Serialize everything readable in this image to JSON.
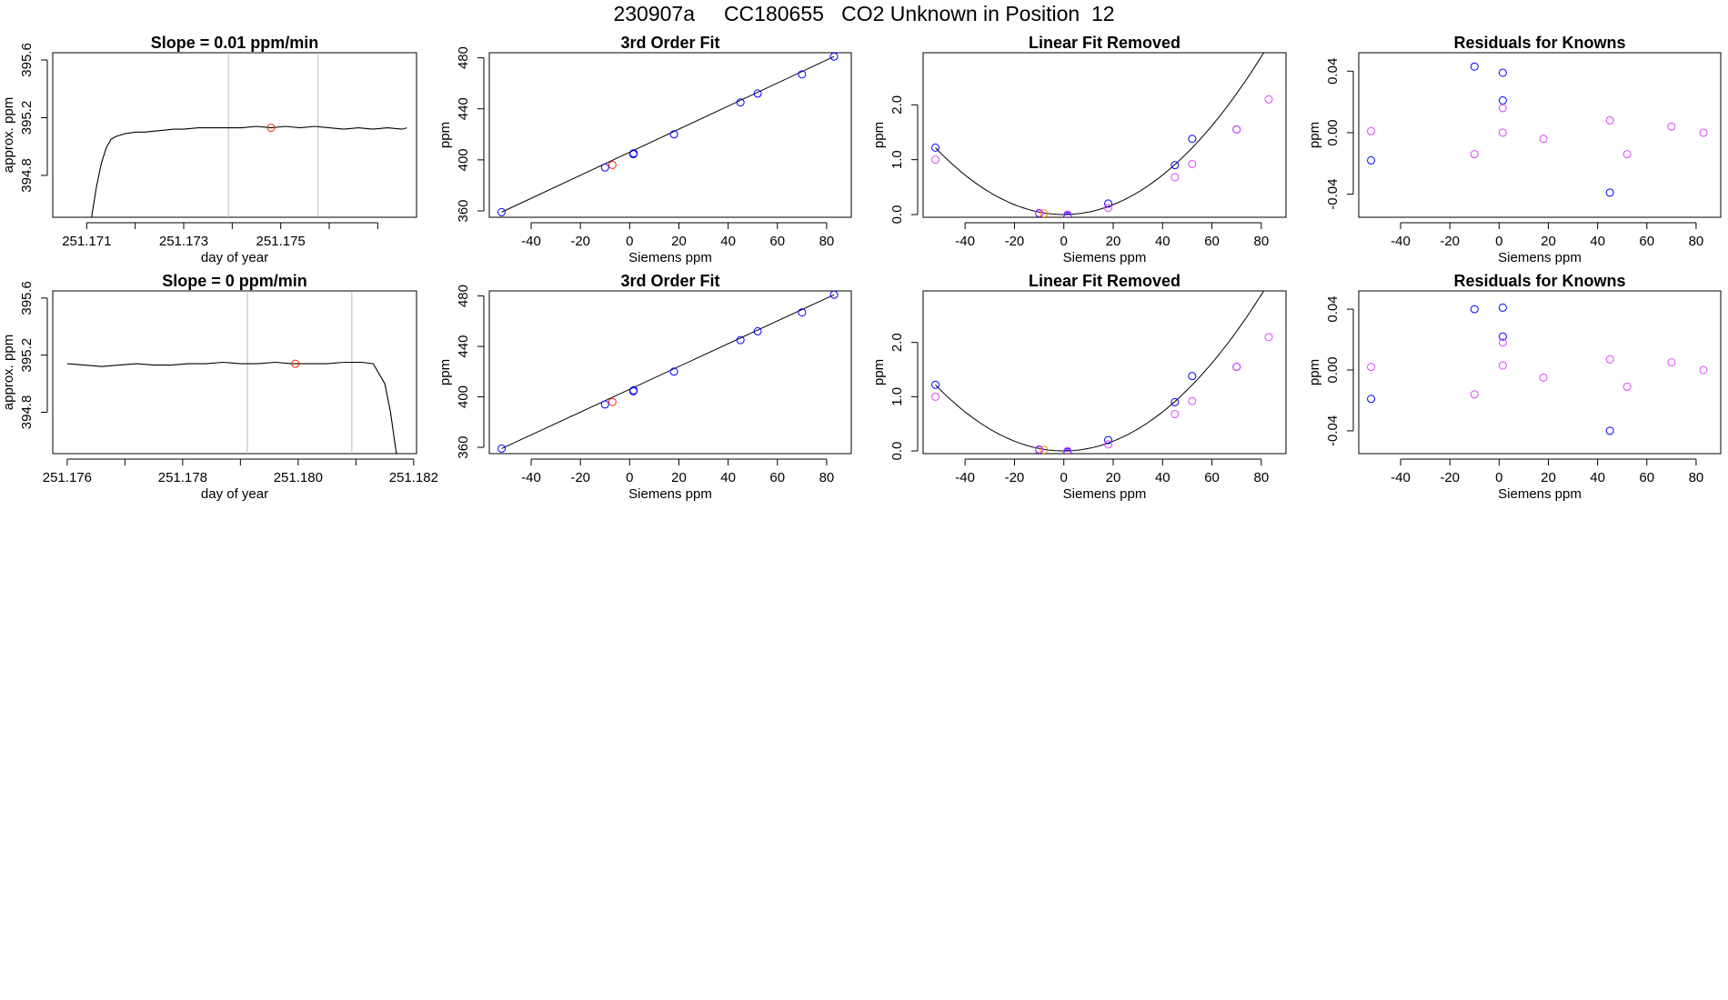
{
  "main_title": "230907a     CC180655   CO2 Unknown in Position  12",
  "colors": {
    "blue": "#0000ff",
    "magenta": "#e040ff",
    "red": "#ff2200",
    "orange": "#ff8800",
    "grid": "#bbbbbb",
    "line": "#000000"
  },
  "chart_data": [
    {
      "type": "line",
      "row": 0,
      "col": 0,
      "title": "Slope =  0.01  ppm/min",
      "xlabel": "day of year",
      "ylabel": "approx. ppm",
      "xlim": [
        251.1703,
        251.1778
      ],
      "ylim": [
        394.51,
        395.65
      ],
      "xticks": [
        251.171,
        251.172,
        251.173,
        251.174,
        251.175,
        251.176,
        251.177
      ],
      "xticklabels": [
        "251.171",
        "",
        "251.173",
        "",
        "251.175",
        "",
        ""
      ],
      "yticks": [
        394.8,
        395.2,
        395.6
      ],
      "yticklabels": [
        "394.8",
        "395.2",
        "395.6"
      ],
      "vlines": [
        251.17392,
        251.17577
      ],
      "series": [
        {
          "name": "trace",
          "x": [
            251.1711,
            251.1712,
            251.1713,
            251.1714,
            251.1715,
            251.1716,
            251.1717,
            251.1718,
            251.172,
            251.1722,
            251.1725,
            251.1728,
            251.173,
            251.1733,
            251.1736,
            251.1739,
            251.1742,
            251.1745,
            251.1748,
            251.1751,
            251.1754,
            251.1757,
            251.176,
            251.1763,
            251.1766,
            251.1769,
            251.1772,
            251.1775,
            251.1776
          ],
          "y": [
            394.51,
            394.72,
            394.88,
            394.99,
            395.05,
            395.07,
            395.08,
            395.09,
            395.1,
            395.1,
            395.11,
            395.12,
            395.12,
            395.13,
            395.13,
            395.13,
            395.13,
            395.14,
            395.13,
            395.14,
            395.13,
            395.14,
            395.13,
            395.12,
            395.13,
            395.12,
            395.13,
            395.12,
            395.13
          ]
        }
      ],
      "marker": {
        "x": 251.1748,
        "y": 395.13,
        "color": "red"
      }
    },
    {
      "type": "line",
      "row": 1,
      "col": 0,
      "title": "Slope =  0  ppm/min",
      "xlabel": "day of year",
      "ylabel": "approx. ppm",
      "xlim": [
        251.17575,
        251.18205
      ],
      "ylim": [
        394.51,
        395.65
      ],
      "xticks": [
        251.176,
        251.177,
        251.178,
        251.179,
        251.18,
        251.181,
        251.182
      ],
      "xticklabels": [
        "251.176",
        "",
        "251.178",
        "",
        "251.180",
        "",
        "251.182"
      ],
      "yticks": [
        394.8,
        395.2,
        395.6
      ],
      "yticklabels": [
        "394.8",
        "395.2",
        "395.6"
      ],
      "vlines": [
        251.17912,
        251.18093
      ],
      "series": [
        {
          "name": "trace",
          "x": [
            251.176,
            251.1763,
            251.1766,
            251.1769,
            251.1772,
            251.1775,
            251.1778,
            251.1781,
            251.1784,
            251.1787,
            251.179,
            251.1793,
            251.1796,
            251.1799,
            251.1802,
            251.1805,
            251.1808,
            251.1811,
            251.1813,
            251.1815,
            251.1816,
            251.1817
          ],
          "y": [
            395.14,
            395.13,
            395.12,
            395.13,
            395.14,
            395.13,
            395.13,
            395.14,
            395.14,
            395.15,
            395.14,
            395.14,
            395.15,
            395.14,
            395.14,
            395.14,
            395.15,
            395.15,
            395.14,
            395.0,
            394.8,
            394.51
          ]
        }
      ],
      "marker": {
        "x": 251.17995,
        "y": 395.14,
        "color": "red"
      }
    },
    {
      "type": "scatter",
      "row": 0,
      "col": 1,
      "title": "3rd Order Fit",
      "xlabel": "Siemens ppm",
      "ylabel": "ppm",
      "xlim": [
        -57,
        90
      ],
      "ylim": [
        355,
        484
      ],
      "xticks": [
        -40,
        -20,
        0,
        20,
        40,
        60,
        80
      ],
      "xticklabels": [
        "-40",
        "-20",
        "0",
        "20",
        "40",
        "60",
        "80"
      ],
      "yticks": [
        360,
        400,
        440,
        480
      ],
      "yticklabels": [
        "360",
        "400",
        "440",
        "480"
      ],
      "curve": {
        "x": [
          -52,
          83
        ],
        "y": [
          359,
          481
        ]
      },
      "series": [
        {
          "name": "knowns",
          "color": "blue",
          "points": [
            [
              -52,
              359
            ],
            [
              -10,
              394
            ],
            [
              1.5,
              404.5
            ],
            [
              1.6,
              405.2
            ],
            [
              18,
              420
            ],
            [
              45,
              445
            ],
            [
              52,
              452
            ],
            [
              70,
              467
            ],
            [
              83,
              481
            ]
          ]
        },
        {
          "name": "unknown",
          "color": "red",
          "points": [
            [
              -7,
              396
            ]
          ]
        }
      ]
    },
    {
      "type": "scatter",
      "row": 1,
      "col": 1,
      "title": "3rd Order Fit",
      "xlabel": "Siemens ppm",
      "ylabel": "ppm",
      "xlim": [
        -57,
        90
      ],
      "ylim": [
        355,
        484
      ],
      "xticks": [
        -40,
        -20,
        0,
        20,
        40,
        60,
        80
      ],
      "xticklabels": [
        "-40",
        "-20",
        "0",
        "20",
        "40",
        "60",
        "80"
      ],
      "yticks": [
        360,
        400,
        440,
        480
      ],
      "yticklabels": [
        "360",
        "400",
        "440",
        "480"
      ],
      "curve": {
        "x": [
          -52,
          83
        ],
        "y": [
          359,
          481
        ]
      },
      "series": [
        {
          "name": "knowns",
          "color": "blue",
          "points": [
            [
              -52,
              359
            ],
            [
              -10,
              394
            ],
            [
              1.5,
              404.5
            ],
            [
              1.6,
              405.2
            ],
            [
              18,
              420
            ],
            [
              45,
              445
            ],
            [
              52,
              452
            ],
            [
              70,
              467
            ],
            [
              83,
              481
            ]
          ]
        },
        {
          "name": "unknown",
          "color": "red",
          "points": [
            [
              -7,
              396
            ]
          ]
        }
      ]
    },
    {
      "type": "scatter",
      "row": 0,
      "col": 2,
      "title": "Linear Fit Removed",
      "xlabel": "Siemens ppm",
      "ylabel": "ppm",
      "xlim": [
        -57,
        90
      ],
      "ylim": [
        -0.05,
        2.95
      ],
      "xticks": [
        -40,
        -20,
        0,
        20,
        40,
        60,
        80
      ],
      "xticklabels": [
        "-40",
        "-20",
        "0",
        "20",
        "40",
        "60",
        "80"
      ],
      "yticks": [
        0,
        1,
        2
      ],
      "yticklabels": [
        "0.0",
        "1.0",
        "2.0"
      ],
      "curve_fn": {
        "vertex_x": 0,
        "scale": 0.00045,
        "x_range": [
          -52,
          84
        ]
      },
      "series": [
        {
          "name": "knowns-a",
          "color": "blue",
          "points": [
            [
              -52,
              1.22
            ],
            [
              -10,
              0.02
            ],
            [
              1.5,
              -0.02
            ],
            [
              1.5,
              -0.05
            ],
            [
              18,
              0.2
            ],
            [
              45,
              0.9
            ],
            [
              52,
              1.38
            ],
            [
              70,
              1.55
            ]
          ]
        },
        {
          "name": "knowns-b",
          "color": "magenta",
          "points": [
            [
              -52,
              1.0
            ],
            [
              -10,
              0.03
            ],
            [
              1.5,
              0.0
            ],
            [
              18,
              0.12
            ],
            [
              45,
              0.68
            ],
            [
              52,
              0.92
            ],
            [
              70,
              1.55
            ],
            [
              83,
              2.1
            ]
          ]
        },
        {
          "name": "unknown",
          "color": "orange",
          "points": [
            [
              -8,
              0.02
            ]
          ]
        }
      ]
    },
    {
      "type": "scatter",
      "row": 1,
      "col": 2,
      "title": "Linear Fit Removed",
      "xlabel": "Siemens ppm",
      "ylabel": "ppm",
      "xlim": [
        -57,
        90
      ],
      "ylim": [
        -0.05,
        2.95
      ],
      "xticks": [
        -40,
        -20,
        0,
        20,
        40,
        60,
        80
      ],
      "xticklabels": [
        "-40",
        "-20",
        "0",
        "20",
        "40",
        "60",
        "80"
      ],
      "yticks": [
        0,
        1,
        2
      ],
      "yticklabels": [
        "0.0",
        "1.0",
        "2.0"
      ],
      "curve_fn": {
        "vertex_x": 0,
        "scale": 0.00045,
        "x_range": [
          -52,
          84
        ]
      },
      "series": [
        {
          "name": "knowns-a",
          "color": "blue",
          "points": [
            [
              -52,
              1.22
            ],
            [
              -10,
              0.02
            ],
            [
              1.5,
              -0.02
            ],
            [
              1.5,
              -0.05
            ],
            [
              18,
              0.2
            ],
            [
              45,
              0.9
            ],
            [
              52,
              1.38
            ],
            [
              70,
              1.55
            ]
          ]
        },
        {
          "name": "knowns-b",
          "color": "magenta",
          "points": [
            [
              -52,
              1.0
            ],
            [
              -10,
              0.03
            ],
            [
              1.5,
              0.0
            ],
            [
              18,
              0.12
            ],
            [
              45,
              0.68
            ],
            [
              52,
              0.92
            ],
            [
              70,
              1.55
            ],
            [
              83,
              2.1
            ]
          ]
        },
        {
          "name": "unknown",
          "color": "orange",
          "points": [
            [
              -8,
              0.02
            ]
          ]
        }
      ]
    },
    {
      "type": "scatter",
      "row": 0,
      "col": 3,
      "title": "Residuals for Knowns",
      "xlabel": "Siemens ppm",
      "ylabel": "ppm",
      "xlim": [
        -57,
        90
      ],
      "ylim": [
        -0.055,
        0.052
      ],
      "xticks": [
        -40,
        -20,
        0,
        20,
        40,
        60,
        80
      ],
      "xticklabels": [
        "-40",
        "-20",
        "0",
        "20",
        "40",
        "60",
        "80"
      ],
      "yticks": [
        -0.04,
        0,
        0.04
      ],
      "yticklabels": [
        "-0.04",
        "0.00",
        "0.04"
      ],
      "series": [
        {
          "name": "residuals-a",
          "color": "blue",
          "points": [
            [
              -52,
              -0.018
            ],
            [
              -10,
              0.043
            ],
            [
              1.5,
              0.039
            ],
            [
              1.5,
              0.021
            ],
            [
              45,
              -0.039
            ]
          ]
        },
        {
          "name": "residuals-b",
          "color": "magenta",
          "points": [
            [
              -52,
              0.001
            ],
            [
              -10,
              -0.014
            ],
            [
              1.5,
              0.016
            ],
            [
              1.5,
              0.0
            ],
            [
              18,
              -0.004
            ],
            [
              45,
              0.008
            ],
            [
              52,
              -0.014
            ],
            [
              70,
              0.004
            ],
            [
              83,
              0.0
            ]
          ]
        }
      ]
    },
    {
      "type": "scatter",
      "row": 1,
      "col": 3,
      "title": "Residuals for Knowns",
      "xlabel": "Siemens ppm",
      "ylabel": "ppm",
      "xlim": [
        -57,
        90
      ],
      "ylim": [
        -0.055,
        0.052
      ],
      "xticks": [
        -40,
        -20,
        0,
        20,
        40,
        60,
        80
      ],
      "xticklabels": [
        "-40",
        "-20",
        "0",
        "20",
        "40",
        "60",
        "80"
      ],
      "yticks": [
        -0.04,
        0,
        0.04
      ],
      "yticklabels": [
        "-0.04",
        "0.00",
        "0.04"
      ],
      "series": [
        {
          "name": "residuals-a",
          "color": "blue",
          "points": [
            [
              -52,
              -0.019
            ],
            [
              -10,
              0.04
            ],
            [
              1.5,
              0.041
            ],
            [
              1.5,
              0.022
            ],
            [
              45,
              -0.04
            ]
          ]
        },
        {
          "name": "residuals-b",
          "color": "magenta",
          "points": [
            [
              -52,
              0.002
            ],
            [
              -10,
              -0.016
            ],
            [
              1.5,
              0.018
            ],
            [
              1.5,
              0.003
            ],
            [
              18,
              -0.005
            ],
            [
              45,
              0.007
            ],
            [
              52,
              -0.011
            ],
            [
              70,
              0.005
            ],
            [
              83,
              0.0
            ]
          ]
        }
      ]
    }
  ]
}
